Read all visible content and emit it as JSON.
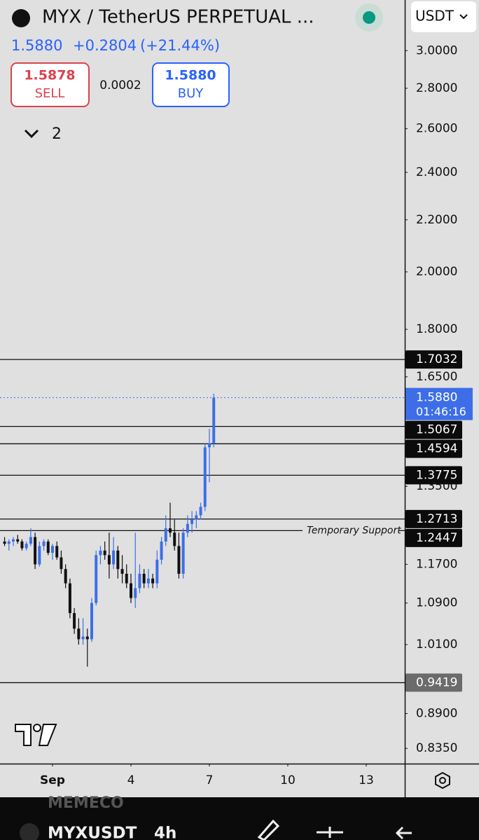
{
  "header": {
    "symbol": "MYX / TetherUS PERPETUAL ...",
    "last": "1.5880",
    "change": "+0.2804",
    "change_pct": "(+21.44%)",
    "sell_price": "1.5878",
    "sell_label": "SELL",
    "spread": "0.0002",
    "buy_price": "1.5880",
    "buy_label": "BUY",
    "indicators_count": "2",
    "currency": "USDT"
  },
  "chart_data": {
    "type": "candlestick",
    "log_scale": true,
    "up_color": "#3d6ee8",
    "down_color": "#111111",
    "x": [
      -0.833,
      -0.667,
      -0.5,
      -0.333,
      -0.167,
      0,
      0.167,
      0.333,
      0.5,
      0.667,
      0.833,
      1,
      1.167,
      1.333,
      1.5,
      1.667,
      1.833,
      2,
      2.167,
      2.333,
      2.5,
      2.667,
      2.833,
      3,
      3.167,
      3.333,
      3.5,
      3.667,
      3.833,
      4,
      4.167,
      4.333,
      4.5,
      4.667,
      4.833,
      5,
      5.167,
      5.333,
      5.5,
      5.667,
      5.833,
      6,
      6.167,
      6.333,
      6.5,
      6.667,
      6.833,
      7,
      7.167
    ],
    "open": [
      1.22,
      1.215,
      1.22,
      1.225,
      1.22,
      1.205,
      1.215,
      1.23,
      1.17,
      1.21,
      1.22,
      1.195,
      1.21,
      1.185,
      1.16,
      1.13,
      1.07,
      1.04,
      1.02,
      1.025,
      1.02,
      1.09,
      1.19,
      1.2,
      1.19,
      1.17,
      1.2,
      1.16,
      1.15,
      1.13,
      1.1,
      1.12,
      1.15,
      1.13,
      1.14,
      1.13,
      1.18,
      1.22,
      1.25,
      1.24,
      1.21,
      1.15,
      1.24,
      1.26,
      1.27,
      1.28,
      1.3,
      1.45,
      1.46
    ],
    "high": [
      1.23,
      1.225,
      1.23,
      1.235,
      1.225,
      1.22,
      1.25,
      1.24,
      1.22,
      1.225,
      1.225,
      1.215,
      1.22,
      1.2,
      1.17,
      1.14,
      1.08,
      1.06,
      1.06,
      1.04,
      1.1,
      1.2,
      1.21,
      1.22,
      1.24,
      1.23,
      1.21,
      1.19,
      1.17,
      1.15,
      1.24,
      1.17,
      1.16,
      1.16,
      1.15,
      1.2,
      1.23,
      1.28,
      1.31,
      1.27,
      1.24,
      1.25,
      1.28,
      1.29,
      1.29,
      1.31,
      1.46,
      1.5,
      1.6
    ],
    "low": [
      1.21,
      1.2,
      1.21,
      1.215,
      1.2,
      1.2,
      1.21,
      1.16,
      1.165,
      1.2,
      1.19,
      1.18,
      1.18,
      1.15,
      1.12,
      1.06,
      1.03,
      1.01,
      1.01,
      0.97,
      1.015,
      1.085,
      1.17,
      1.18,
      1.14,
      1.16,
      1.14,
      1.13,
      1.12,
      1.09,
      1.08,
      1.11,
      1.12,
      1.12,
      1.12,
      1.12,
      1.17,
      1.21,
      1.23,
      1.2,
      1.14,
      1.14,
      1.23,
      1.24,
      1.25,
      1.27,
      1.29,
      1.36,
      1.45
    ],
    "close": [
      1.215,
      1.22,
      1.225,
      1.22,
      1.205,
      1.215,
      1.23,
      1.17,
      1.21,
      1.22,
      1.195,
      1.21,
      1.185,
      1.16,
      1.13,
      1.07,
      1.04,
      1.02,
      1.025,
      1.02,
      1.09,
      1.19,
      1.2,
      1.19,
      1.17,
      1.2,
      1.16,
      1.15,
      1.13,
      1.1,
      1.12,
      1.15,
      1.13,
      1.14,
      1.13,
      1.18,
      1.22,
      1.25,
      1.24,
      1.21,
      1.15,
      1.24,
      1.26,
      1.27,
      1.28,
      1.3,
      1.45,
      1.46,
      1.588
    ],
    "ylim": [
      0.812,
      3.087
    ],
    "yticks": [
      {
        "value": 3,
        "label": "3.0000"
      },
      {
        "value": 2.8,
        "label": "2.8000"
      },
      {
        "value": 2.6,
        "label": "2.6000"
      },
      {
        "value": 2.4,
        "label": "2.4000"
      },
      {
        "value": 2.2,
        "label": "2.2000"
      },
      {
        "value": 2,
        "label": "2.0000"
      },
      {
        "value": 1.8,
        "label": "1.8000"
      },
      {
        "value": 1.65,
        "label": "1.6500"
      },
      {
        "value": 1.35,
        "label": "1.3500"
      },
      {
        "value": 1.17,
        "label": "1.1700"
      },
      {
        "value": 1.09,
        "label": "1.0900"
      },
      {
        "value": 1.01,
        "label": "1.0100"
      },
      {
        "value": 0.89,
        "label": "0.8900"
      },
      {
        "value": 0.835,
        "label": "0.8350"
      }
    ],
    "xlim": [
      -1.009,
      14.474
    ],
    "xticks": [
      {
        "value": 1,
        "label": "Sep"
      },
      4,
      7,
      10,
      13
    ],
    "price_lines": [
      1.7032,
      1.5067,
      1.4594,
      1.3775,
      1.2713,
      1.2447,
      0.9419
    ],
    "annotation": "Temporary Support",
    "current_price": {
      "value": 1.588,
      "label": "1.5880"
    },
    "countdown": "01:46:16"
  },
  "footer": {
    "background_text": "MEMECO",
    "symbol": "MYXUSDT",
    "interval": "4h"
  }
}
